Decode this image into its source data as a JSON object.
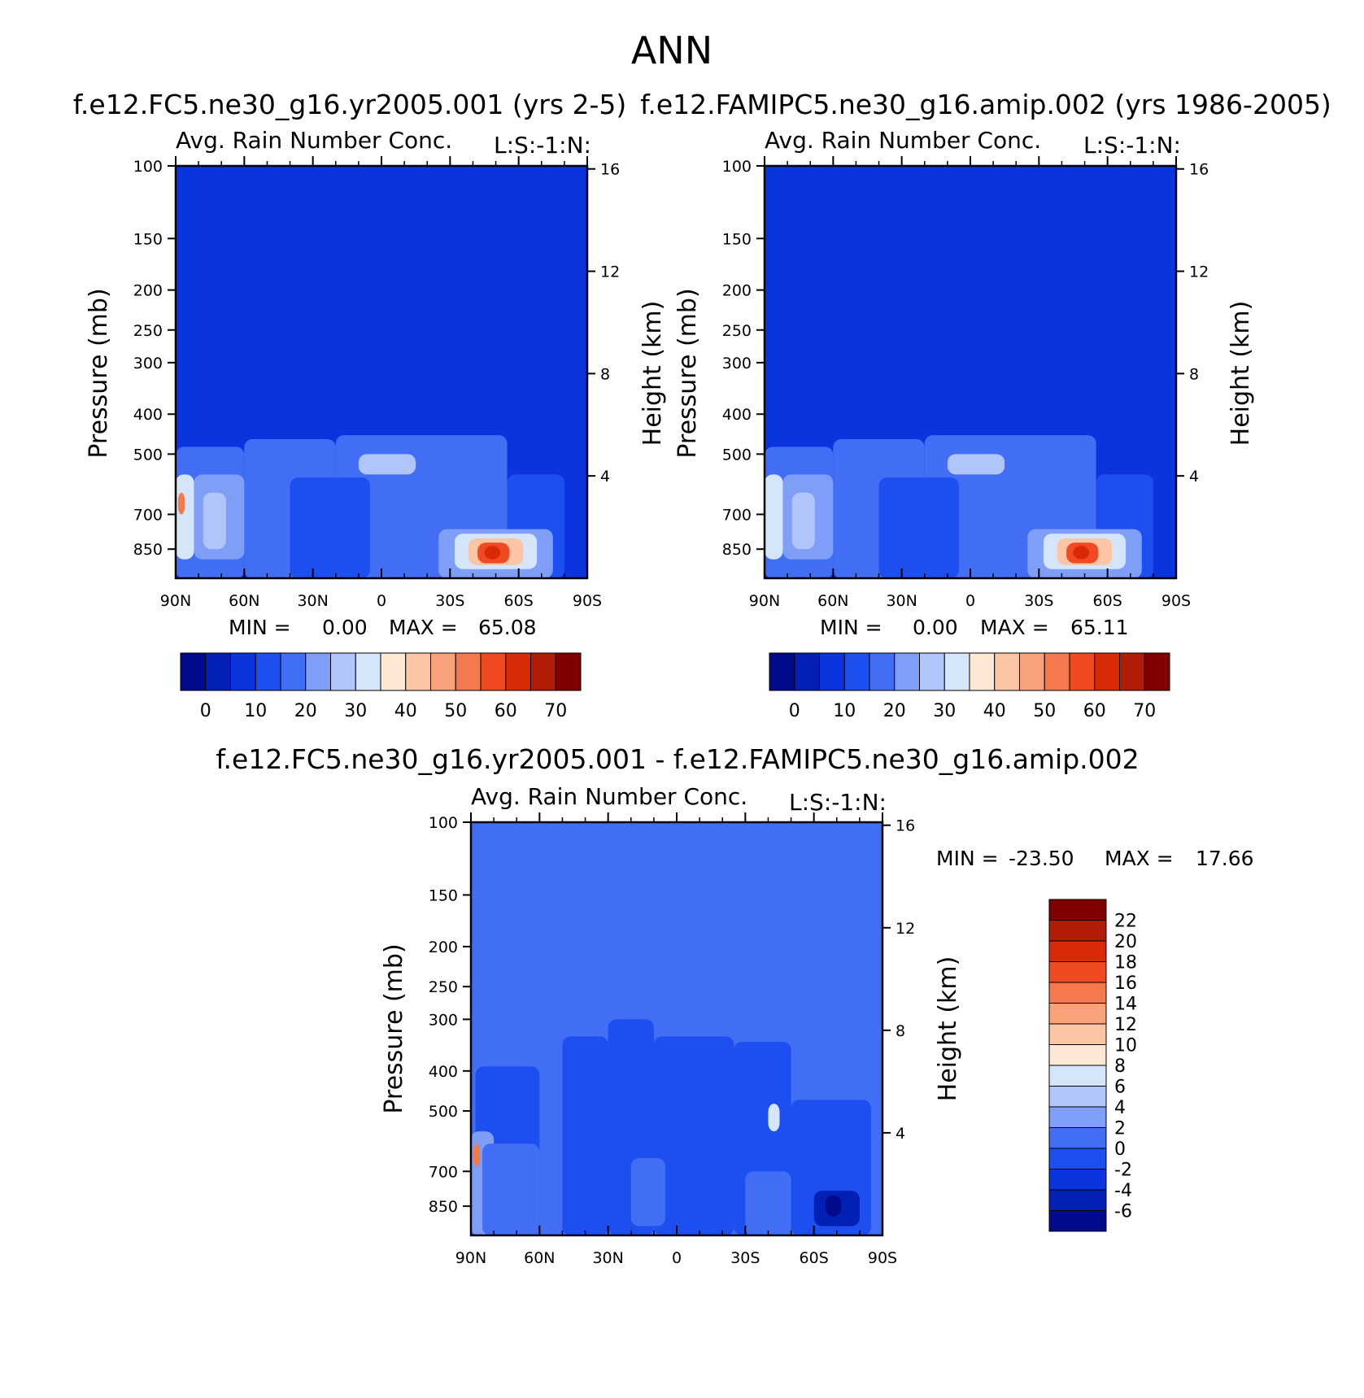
{
  "figure": {
    "title": "ANN"
  },
  "palettes": {
    "abs": [
      "#020a8c",
      "#0320b4",
      "#0a35de",
      "#1d4ff0",
      "#426ef5",
      "#7e9ef8",
      "#b0c6fa",
      "#d6e6fa",
      "#fde8d6",
      "#fbc5a6",
      "#f8a27a",
      "#f47a4e",
      "#f04a22",
      "#d92a08",
      "#b01c06",
      "#800000"
    ],
    "diff": [
      "#020a8c",
      "#0320b4",
      "#0a35de",
      "#1d4ff0",
      "#426ef5",
      "#7e9ef8",
      "#b0c6fa",
      "#d6e6fa",
      "#fde8d6",
      "#fbc5a6",
      "#f8a27a",
      "#f47a4e",
      "#f04a22",
      "#d92a08",
      "#b01c06",
      "#800000"
    ]
  },
  "chart_data": [
    {
      "type": "heatmap",
      "panel": "top-left",
      "title": "f.e12.FC5.ne30_g16.yr2005.001 (yrs 2-5)",
      "variable_label": "Avg. Rain Number Conc.",
      "level_label": "L:S:-1:N:",
      "ylabel": "Pressure (mb)",
      "y2label": "Height (km)",
      "x_ticklabels": [
        "90N",
        "60N",
        "30N",
        "0",
        "30S",
        "60S",
        "90S"
      ],
      "x_values": [
        90,
        60,
        30,
        0,
        -30,
        -60,
        -90
      ],
      "y_ticklabels": [
        "100",
        "150",
        "200",
        "250",
        "300",
        "400",
        "500",
        "700",
        "850"
      ],
      "y_values": [
        100,
        150,
        200,
        250,
        300,
        400,
        500,
        700,
        850
      ],
      "y2_ticklabels": [
        "16",
        "12",
        "8",
        "4"
      ],
      "y2_values": [
        16,
        12,
        8,
        4
      ],
      "ylim": [
        100,
        1000
      ],
      "y_scale": "log",
      "min_label": "MIN =",
      "min_value": "0.00",
      "max_label": "MAX =",
      "max_value": "65.08",
      "min": 0.0,
      "max": 65.08,
      "colorbar": {
        "orientation": "horizontal",
        "ticklabels": [
          "0",
          "10",
          "20",
          "30",
          "40",
          "50",
          "60",
          "70"
        ],
        "levels": [
          0,
          5,
          10,
          15,
          20,
          25,
          30,
          35,
          40,
          45,
          50,
          55,
          60,
          65,
          70
        ],
        "palette": "abs"
      },
      "field": {
        "background": 2,
        "cells": [
          {
            "lat": [
              90,
              60
            ],
            "p": [
              480,
              1000
            ],
            "level": 4
          },
          {
            "lat": [
              60,
              20
            ],
            "p": [
              460,
              1000
            ],
            "level": 4
          },
          {
            "lat": [
              20,
              -55
            ],
            "p": [
              450,
              1000
            ],
            "level": 4
          },
          {
            "lat": [
              -55,
              -80
            ],
            "p": [
              560,
              1000
            ],
            "level": 3
          },
          {
            "lat": [
              90,
              82
            ],
            "p": [
              560,
              900
            ],
            "level": 7
          },
          {
            "lat": [
              89,
              86
            ],
            "p": [
              620,
              700
            ],
            "level": 11
          },
          {
            "lat": [
              82,
              60
            ],
            "p": [
              560,
              900
            ],
            "level": 5
          },
          {
            "lat": [
              78,
              68
            ],
            "p": [
              620,
              850
            ],
            "level": 6
          },
          {
            "lat": [
              40,
              5
            ],
            "p": [
              570,
              1000
            ],
            "level": 3
          },
          {
            "lat": [
              10,
              -15
            ],
            "p": [
              500,
              560
            ],
            "level": 6
          },
          {
            "lat": [
              -25,
              -75
            ],
            "p": [
              760,
              1000
            ],
            "level": 5
          },
          {
            "lat": [
              -32,
              -68
            ],
            "p": [
              780,
              950
            ],
            "level": 7
          },
          {
            "lat": [
              -38,
              -62
            ],
            "p": [
              800,
              930
            ],
            "level": 9
          },
          {
            "lat": [
              -42,
              -56
            ],
            "p": [
              820,
              920
            ],
            "level": 12
          },
          {
            "lat": [
              -45,
              -52
            ],
            "p": [
              835,
              900
            ],
            "level": 13
          }
        ]
      }
    },
    {
      "type": "heatmap",
      "panel": "top-right",
      "title": "f.e12.FAMIPC5.ne30_g16.amip.002 (yrs 1986-2005)",
      "variable_label": "Avg. Rain Number Conc.",
      "level_label": "L:S:-1:N:",
      "ylabel": "Pressure (mb)",
      "y2label": "Height (km)",
      "x_ticklabels": [
        "90N",
        "60N",
        "30N",
        "0",
        "30S",
        "60S",
        "90S"
      ],
      "x_values": [
        90,
        60,
        30,
        0,
        -30,
        -60,
        -90
      ],
      "y_ticklabels": [
        "100",
        "150",
        "200",
        "250",
        "300",
        "400",
        "500",
        "700",
        "850"
      ],
      "y_values": [
        100,
        150,
        200,
        250,
        300,
        400,
        500,
        700,
        850
      ],
      "y2_ticklabels": [
        "16",
        "12",
        "8",
        "4"
      ],
      "y2_values": [
        16,
        12,
        8,
        4
      ],
      "ylim": [
        100,
        1000
      ],
      "y_scale": "log",
      "min_label": "MIN =",
      "min_value": "0.00",
      "max_label": "MAX =",
      "max_value": "65.11",
      "min": 0.0,
      "max": 65.11,
      "colorbar": {
        "orientation": "horizontal",
        "ticklabels": [
          "0",
          "10",
          "20",
          "30",
          "40",
          "50",
          "60",
          "70"
        ],
        "levels": [
          0,
          5,
          10,
          15,
          20,
          25,
          30,
          35,
          40,
          45,
          50,
          55,
          60,
          65,
          70
        ],
        "palette": "abs"
      },
      "field": {
        "background": 2,
        "cells": [
          {
            "lat": [
              90,
              60
            ],
            "p": [
              480,
              1000
            ],
            "level": 4
          },
          {
            "lat": [
              60,
              20
            ],
            "p": [
              460,
              1000
            ],
            "level": 4
          },
          {
            "lat": [
              20,
              -55
            ],
            "p": [
              450,
              1000
            ],
            "level": 4
          },
          {
            "lat": [
              -55,
              -80
            ],
            "p": [
              560,
              1000
            ],
            "level": 3
          },
          {
            "lat": [
              90,
              82
            ],
            "p": [
              560,
              900
            ],
            "level": 7
          },
          {
            "lat": [
              82,
              60
            ],
            "p": [
              560,
              900
            ],
            "level": 5
          },
          {
            "lat": [
              78,
              68
            ],
            "p": [
              620,
              850
            ],
            "level": 6
          },
          {
            "lat": [
              40,
              5
            ],
            "p": [
              570,
              1000
            ],
            "level": 3
          },
          {
            "lat": [
              10,
              -15
            ],
            "p": [
              500,
              560
            ],
            "level": 6
          },
          {
            "lat": [
              -25,
              -75
            ],
            "p": [
              760,
              1000
            ],
            "level": 5
          },
          {
            "lat": [
              -32,
              -68
            ],
            "p": [
              780,
              950
            ],
            "level": 7
          },
          {
            "lat": [
              -38,
              -62
            ],
            "p": [
              800,
              930
            ],
            "level": 9
          },
          {
            "lat": [
              -42,
              -56
            ],
            "p": [
              820,
              920
            ],
            "level": 12
          },
          {
            "lat": [
              -45,
              -52
            ],
            "p": [
              835,
              900
            ],
            "level": 13
          }
        ]
      }
    },
    {
      "type": "heatmap",
      "panel": "bottom-difference",
      "title": "f.e12.FC5.ne30_g16.yr2005.001 - f.e12.FAMIPC5.ne30_g16.amip.002",
      "variable_label": "Avg. Rain Number Conc.",
      "level_label": "L:S:-1:N:",
      "ylabel": "Pressure (mb)",
      "y2label": "Height (km)",
      "x_ticklabels": [
        "90N",
        "60N",
        "30N",
        "0",
        "30S",
        "60S",
        "90S"
      ],
      "x_values": [
        90,
        60,
        30,
        0,
        -30,
        -60,
        -90
      ],
      "y_ticklabels": [
        "100",
        "150",
        "200",
        "250",
        "300",
        "400",
        "500",
        "700",
        "850"
      ],
      "y_values": [
        100,
        150,
        200,
        250,
        300,
        400,
        500,
        700,
        850
      ],
      "y2_ticklabels": [
        "16",
        "12",
        "8",
        "4"
      ],
      "y2_values": [
        16,
        12,
        8,
        4
      ],
      "ylim": [
        100,
        1000
      ],
      "y_scale": "log",
      "min_label": "MIN =",
      "min_value": "-23.50",
      "max_label": "MAX =",
      "max_value": "17.66",
      "min": -23.5,
      "max": 17.66,
      "colorbar": {
        "orientation": "vertical",
        "ticklabels": [
          "22",
          "20",
          "18",
          "16",
          "14",
          "12",
          "10",
          "8",
          "6",
          "4",
          "2",
          "0",
          "-2",
          "-4",
          "-6"
        ],
        "levels": [
          22,
          20,
          18,
          16,
          14,
          12,
          10,
          8,
          6,
          4,
          2,
          0,
          -2,
          -4,
          -6
        ],
        "palette": "diff"
      },
      "field": {
        "background": 4,
        "cells": [
          {
            "lat": [
              88,
              60
            ],
            "p": [
              390,
              1000
            ],
            "level": 3
          },
          {
            "lat": [
              50,
              30
            ],
            "p": [
              330,
              1000
            ],
            "level": 3
          },
          {
            "lat": [
              30,
              10
            ],
            "p": [
              300,
              1000
            ],
            "level": 3
          },
          {
            "lat": [
              10,
              -25
            ],
            "p": [
              330,
              1000
            ],
            "level": 3
          },
          {
            "lat": [
              -25,
              -50
            ],
            "p": [
              340,
              1000
            ],
            "level": 3
          },
          {
            "lat": [
              -50,
              -85
            ],
            "p": [
              470,
              1000
            ],
            "level": 3
          },
          {
            "lat": [
              90,
              80
            ],
            "p": [
              560,
              1000
            ],
            "level": 5
          },
          {
            "lat": [
              89,
              86
            ],
            "p": [
              600,
              680
            ],
            "level": 11
          },
          {
            "lat": [
              82,
              75
            ],
            "p": [
              640,
              900
            ],
            "level": 7
          },
          {
            "lat": [
              85,
              60
            ],
            "p": [
              600,
              1000
            ],
            "level": 4
          },
          {
            "lat": [
              20,
              5
            ],
            "p": [
              650,
              950
            ],
            "level": 4
          },
          {
            "lat": [
              -30,
              -50
            ],
            "p": [
              700,
              1000
            ],
            "level": 4
          },
          {
            "lat": [
              -40,
              -45
            ],
            "p": [
              480,
              560
            ],
            "level": 7
          },
          {
            "lat": [
              -60,
              -80
            ],
            "p": [
              780,
              950
            ],
            "level": 1
          },
          {
            "lat": [
              -65,
              -72
            ],
            "p": [
              800,
              900
            ],
            "level": 0
          }
        ]
      }
    }
  ]
}
